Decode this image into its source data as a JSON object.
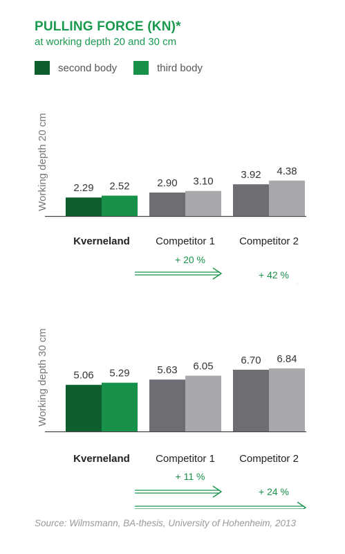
{
  "title": "PULLING FORCE (KN)*",
  "subtitle": "at working depth 20 and 30 cm",
  "legend": [
    {
      "label": "second body",
      "color": "#0e5e2e"
    },
    {
      "label": "third body",
      "color": "#17914a"
    }
  ],
  "colors": {
    "kverneland_second": "#0e5e2e",
    "kverneland_third": "#17914a",
    "competitor_second": "#6d6d73",
    "competitor_third": "#a9a9ad",
    "arrow": "#17914a"
  },
  "chart_data": [
    {
      "type": "bar",
      "ylabel": "Working depth 20 cm",
      "categories": [
        "Kverneland",
        "Competitor 1",
        "Competitor 2"
      ],
      "series": [
        {
          "name": "second body",
          "values": [
            2.29,
            2.9,
            3.92
          ]
        },
        {
          "name": "third body",
          "values": [
            2.52,
            3.1,
            4.38
          ]
        }
      ],
      "value_labels": [
        [
          "2.29",
          "2.52"
        ],
        [
          "2.90",
          "3.10"
        ],
        [
          "3.92",
          "4.38"
        ]
      ],
      "annotations": [
        "+ 20 %",
        "+ 42 %"
      ],
      "ylim": [
        0,
        5
      ]
    },
    {
      "type": "bar",
      "ylabel": "Working depth 30 cm",
      "categories": [
        "Kverneland",
        "Competitor 1",
        "Competitor 2"
      ],
      "series": [
        {
          "name": "second body",
          "values": [
            5.06,
            5.63,
            6.7
          ]
        },
        {
          "name": "third body",
          "values": [
            5.29,
            6.05,
            6.84
          ]
        }
      ],
      "value_labels": [
        [
          "5.06",
          "5.29"
        ],
        [
          "5.63",
          "6.05"
        ],
        [
          "6.70",
          "6.84"
        ]
      ],
      "annotations": [
        "+ 11 %",
        "+ 24 %"
      ],
      "ylim": [
        0,
        8.5
      ]
    }
  ],
  "source": "Source: Wilmsmann, BA-thesis, University of Hohenheim, 2013"
}
